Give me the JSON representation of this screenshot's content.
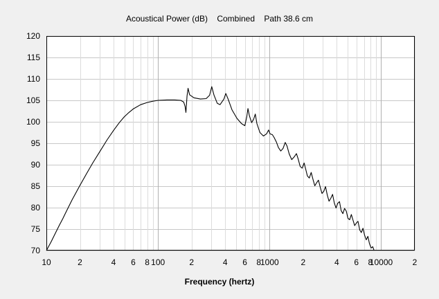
{
  "chart_data": {
    "type": "line",
    "title": "Acoustical Power (dB)    Combined    Path 38.6 cm",
    "xlabel": "Frequency (hertz)",
    "ylabel": "",
    "x_scale": "log",
    "xlim": [
      10,
      20000
    ],
    "ylim": [
      70,
      120
    ],
    "grid": true,
    "y_ticks": [
      70,
      75,
      80,
      85,
      90,
      95,
      100,
      105,
      110,
      115,
      120
    ],
    "x_tick_labels": [
      {
        "value": 10,
        "label": "10"
      },
      {
        "value": 20,
        "label": "2"
      },
      {
        "value": 40,
        "label": "4"
      },
      {
        "value": 60,
        "label": "6"
      },
      {
        "value": 80,
        "label": "8"
      },
      {
        "value": 100,
        "label": "100"
      },
      {
        "value": 200,
        "label": "2"
      },
      {
        "value": 400,
        "label": "4"
      },
      {
        "value": 600,
        "label": "6"
      },
      {
        "value": 800,
        "label": "8"
      },
      {
        "value": 1000,
        "label": "1000"
      },
      {
        "value": 2000,
        "label": "2"
      },
      {
        "value": 4000,
        "label": "4"
      },
      {
        "value": 6000,
        "label": "6"
      },
      {
        "value": 8000,
        "label": "8"
      },
      {
        "value": 10000,
        "label": "10000"
      },
      {
        "value": 20000,
        "label": "2"
      }
    ],
    "series": [
      {
        "color": "#000000",
        "points": [
          [
            10,
            70.0
          ],
          [
            11,
            72.0
          ],
          [
            12,
            74.0
          ],
          [
            13,
            75.8
          ],
          [
            14,
            77.4
          ],
          [
            15,
            79.0
          ],
          [
            17,
            81.8
          ],
          [
            20,
            85.2
          ],
          [
            23,
            88.0
          ],
          [
            26,
            90.4
          ],
          [
            30,
            93.0
          ],
          [
            35,
            95.8
          ],
          [
            40,
            98.0
          ],
          [
            45,
            99.8
          ],
          [
            50,
            101.2
          ],
          [
            55,
            102.2
          ],
          [
            60,
            103.0
          ],
          [
            70,
            104.0
          ],
          [
            80,
            104.5
          ],
          [
            90,
            104.8
          ],
          [
            100,
            105.0
          ],
          [
            120,
            105.1
          ],
          [
            140,
            105.1
          ],
          [
            160,
            105.0
          ],
          [
            170,
            104.6
          ],
          [
            175,
            103.6
          ],
          [
            178,
            102.2
          ],
          [
            182,
            106.0
          ],
          [
            186,
            107.8
          ],
          [
            192,
            106.3
          ],
          [
            210,
            105.6
          ],
          [
            240,
            105.3
          ],
          [
            270,
            105.4
          ],
          [
            290,
            106.2
          ],
          [
            303,
            108.2
          ],
          [
            318,
            106.2
          ],
          [
            340,
            104.3
          ],
          [
            360,
            104.0
          ],
          [
            390,
            105.3
          ],
          [
            405,
            106.6
          ],
          [
            425,
            105.3
          ],
          [
            460,
            102.8
          ],
          [
            510,
            100.8
          ],
          [
            560,
            99.6
          ],
          [
            600,
            99.1
          ],
          [
            625,
            101.2
          ],
          [
            640,
            103.1
          ],
          [
            660,
            101.4
          ],
          [
            690,
            99.8
          ],
          [
            720,
            100.6
          ],
          [
            745,
            101.8
          ],
          [
            770,
            99.6
          ],
          [
            820,
            97.5
          ],
          [
            880,
            96.7
          ],
          [
            940,
            97.2
          ],
          [
            980,
            98.1
          ],
          [
            1010,
            97.2
          ],
          [
            1060,
            97.0
          ],
          [
            1100,
            96.3
          ],
          [
            1150,
            95.3
          ],
          [
            1200,
            94.0
          ],
          [
            1260,
            93.2
          ],
          [
            1320,
            93.8
          ],
          [
            1380,
            95.2
          ],
          [
            1430,
            94.4
          ],
          [
            1500,
            92.5
          ],
          [
            1580,
            91.2
          ],
          [
            1660,
            91.8
          ],
          [
            1740,
            92.6
          ],
          [
            1800,
            91.4
          ],
          [
            1880,
            89.6
          ],
          [
            1960,
            89.2
          ],
          [
            2040,
            90.4
          ],
          [
            2100,
            89.1
          ],
          [
            2180,
            87.4
          ],
          [
            2270,
            86.9
          ],
          [
            2360,
            88.2
          ],
          [
            2450,
            86.6
          ],
          [
            2540,
            85.1
          ],
          [
            2640,
            85.8
          ],
          [
            2740,
            86.4
          ],
          [
            2840,
            84.8
          ],
          [
            2950,
            83.3
          ],
          [
            3060,
            83.8
          ],
          [
            3170,
            84.9
          ],
          [
            3290,
            82.9
          ],
          [
            3410,
            81.5
          ],
          [
            3540,
            82.2
          ],
          [
            3670,
            83.1
          ],
          [
            3800,
            81.1
          ],
          [
            3940,
            79.9
          ],
          [
            4080,
            81.0
          ],
          [
            4230,
            81.4
          ],
          [
            4380,
            79.3
          ],
          [
            4540,
            78.6
          ],
          [
            4700,
            79.8
          ],
          [
            4870,
            79.2
          ],
          [
            5040,
            77.5
          ],
          [
            5220,
            77.2
          ],
          [
            5400,
            78.4
          ],
          [
            5590,
            77.1
          ],
          [
            5790,
            75.8
          ],
          [
            5990,
            76.4
          ],
          [
            6200,
            76.8
          ],
          [
            6420,
            74.8
          ],
          [
            6640,
            74.2
          ],
          [
            6870,
            75.2
          ],
          [
            7100,
            73.6
          ],
          [
            7350,
            72.5
          ],
          [
            7600,
            73.3
          ],
          [
            7860,
            71.6
          ],
          [
            8130,
            70.6
          ],
          [
            8400,
            70.9
          ],
          [
            8650,
            70.0
          ]
        ]
      }
    ]
  }
}
